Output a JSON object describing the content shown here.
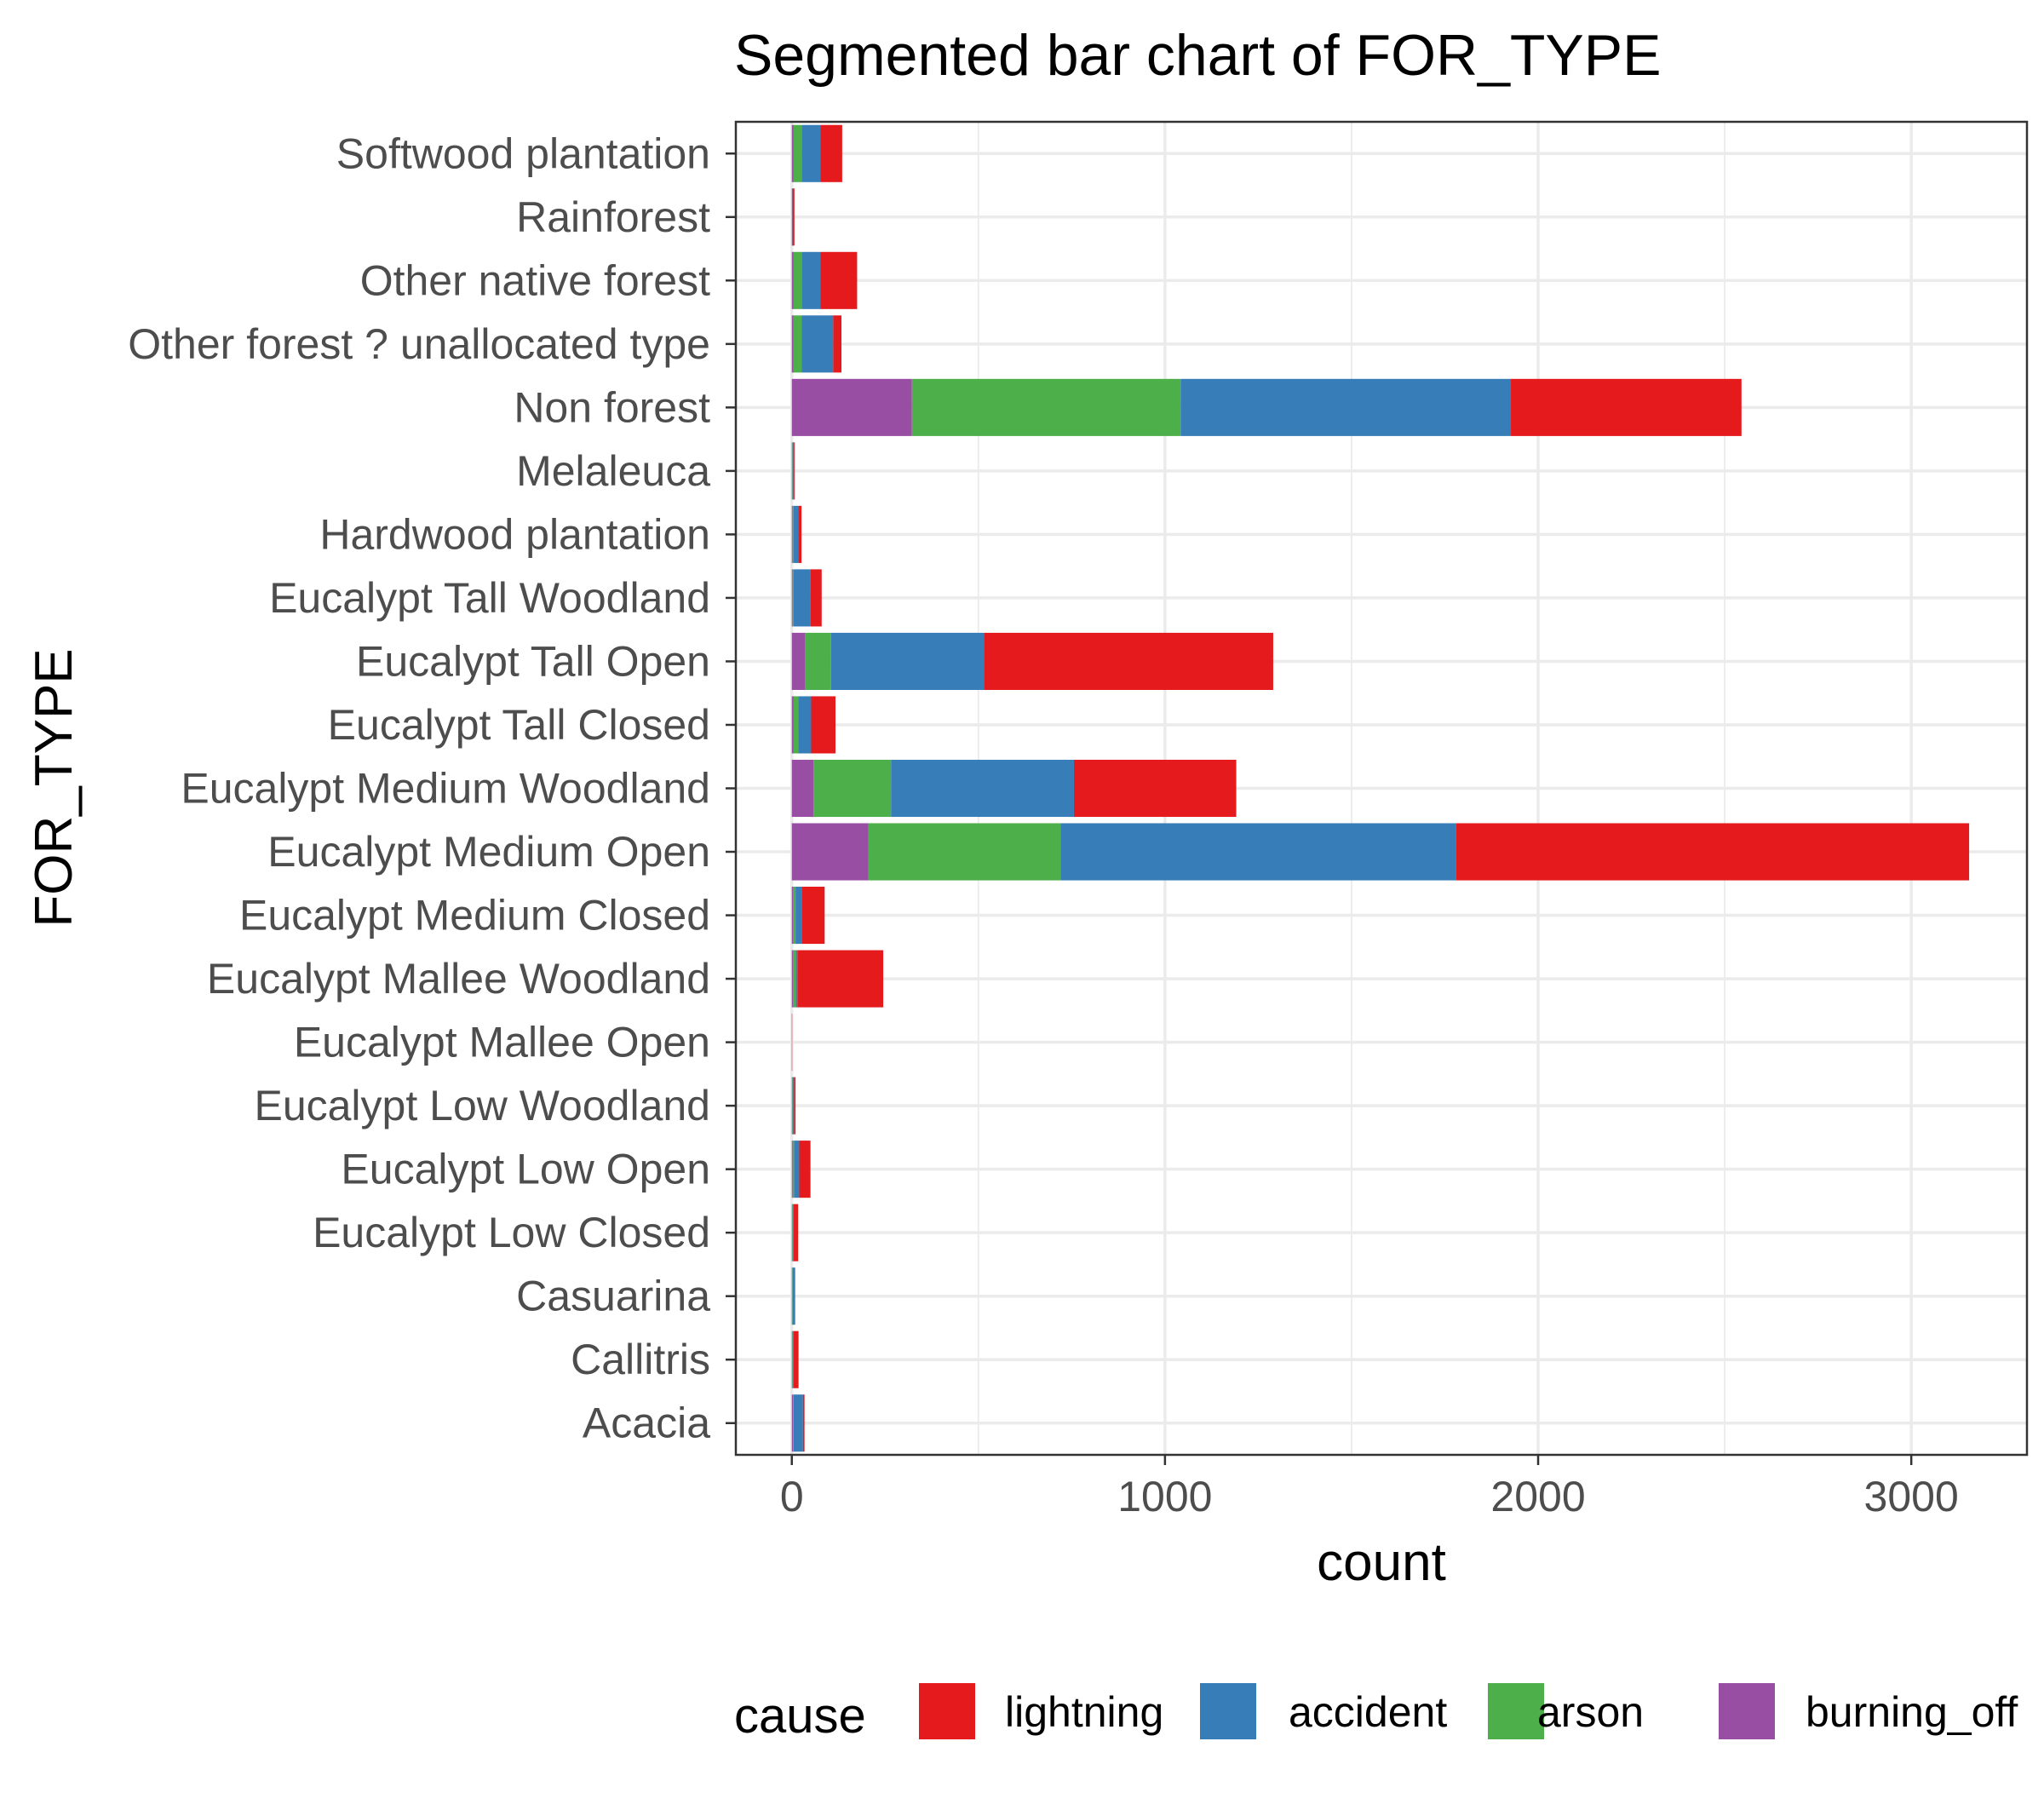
{
  "chart_data": {
    "type": "bar",
    "orientation": "horizontal",
    "stacked": true,
    "title": "Segmented bar chart of FOR_TYPE",
    "xlabel": "count",
    "ylabel": "FOR_TYPE",
    "xlim": [
      -150,
      3310
    ],
    "xticks": [
      0,
      1000,
      2000,
      3000
    ],
    "grid": true,
    "legend_position": "bottom",
    "legend_title": "cause",
    "categories": [
      "Acacia",
      "Callitris",
      "Casuarina",
      "Eucalypt Low Closed",
      "Eucalypt Low Open",
      "Eucalypt Low Woodland",
      "Eucalypt Mallee Open",
      "Eucalypt Mallee Woodland",
      "Eucalypt Medium Closed",
      "Eucalypt Medium Open",
      "Eucalypt Medium Woodland",
      "Eucalypt Tall Closed",
      "Eucalypt Tall Open",
      "Eucalypt Tall Woodland",
      "Hardwood plantation",
      "Melaleuca",
      "Non forest",
      "Other forest ? unallocated type",
      "Other native forest",
      "Rainforest",
      "Softwood plantation"
    ],
    "series": [
      {
        "name": "burning_off",
        "color": "#984EA3",
        "values": [
          3,
          1,
          1,
          1,
          2,
          1,
          0,
          3,
          3,
          205,
          58,
          5,
          35,
          2,
          2,
          1,
          322,
          4,
          5,
          0,
          5
        ]
      },
      {
        "name": "arson",
        "color": "#4DAF4A",
        "values": [
          2,
          1,
          1,
          1,
          4,
          1,
          0,
          8,
          7,
          515,
          208,
          12,
          70,
          3,
          3,
          1,
          720,
          22,
          22,
          0,
          22
        ]
      },
      {
        "name": "accident",
        "color": "#377EB8",
        "values": [
          25,
          3,
          6,
          3,
          14,
          4,
          0,
          4,
          18,
          1060,
          490,
          35,
          410,
          45,
          12,
          4,
          885,
          85,
          50,
          2,
          50
        ]
      },
      {
        "name": "lightning",
        "color": "#E41A1C",
        "values": [
          4,
          13,
          1,
          12,
          30,
          4,
          1,
          230,
          60,
          1375,
          435,
          65,
          775,
          30,
          9,
          2,
          618,
          22,
          98,
          5,
          58
        ]
      }
    ]
  }
}
